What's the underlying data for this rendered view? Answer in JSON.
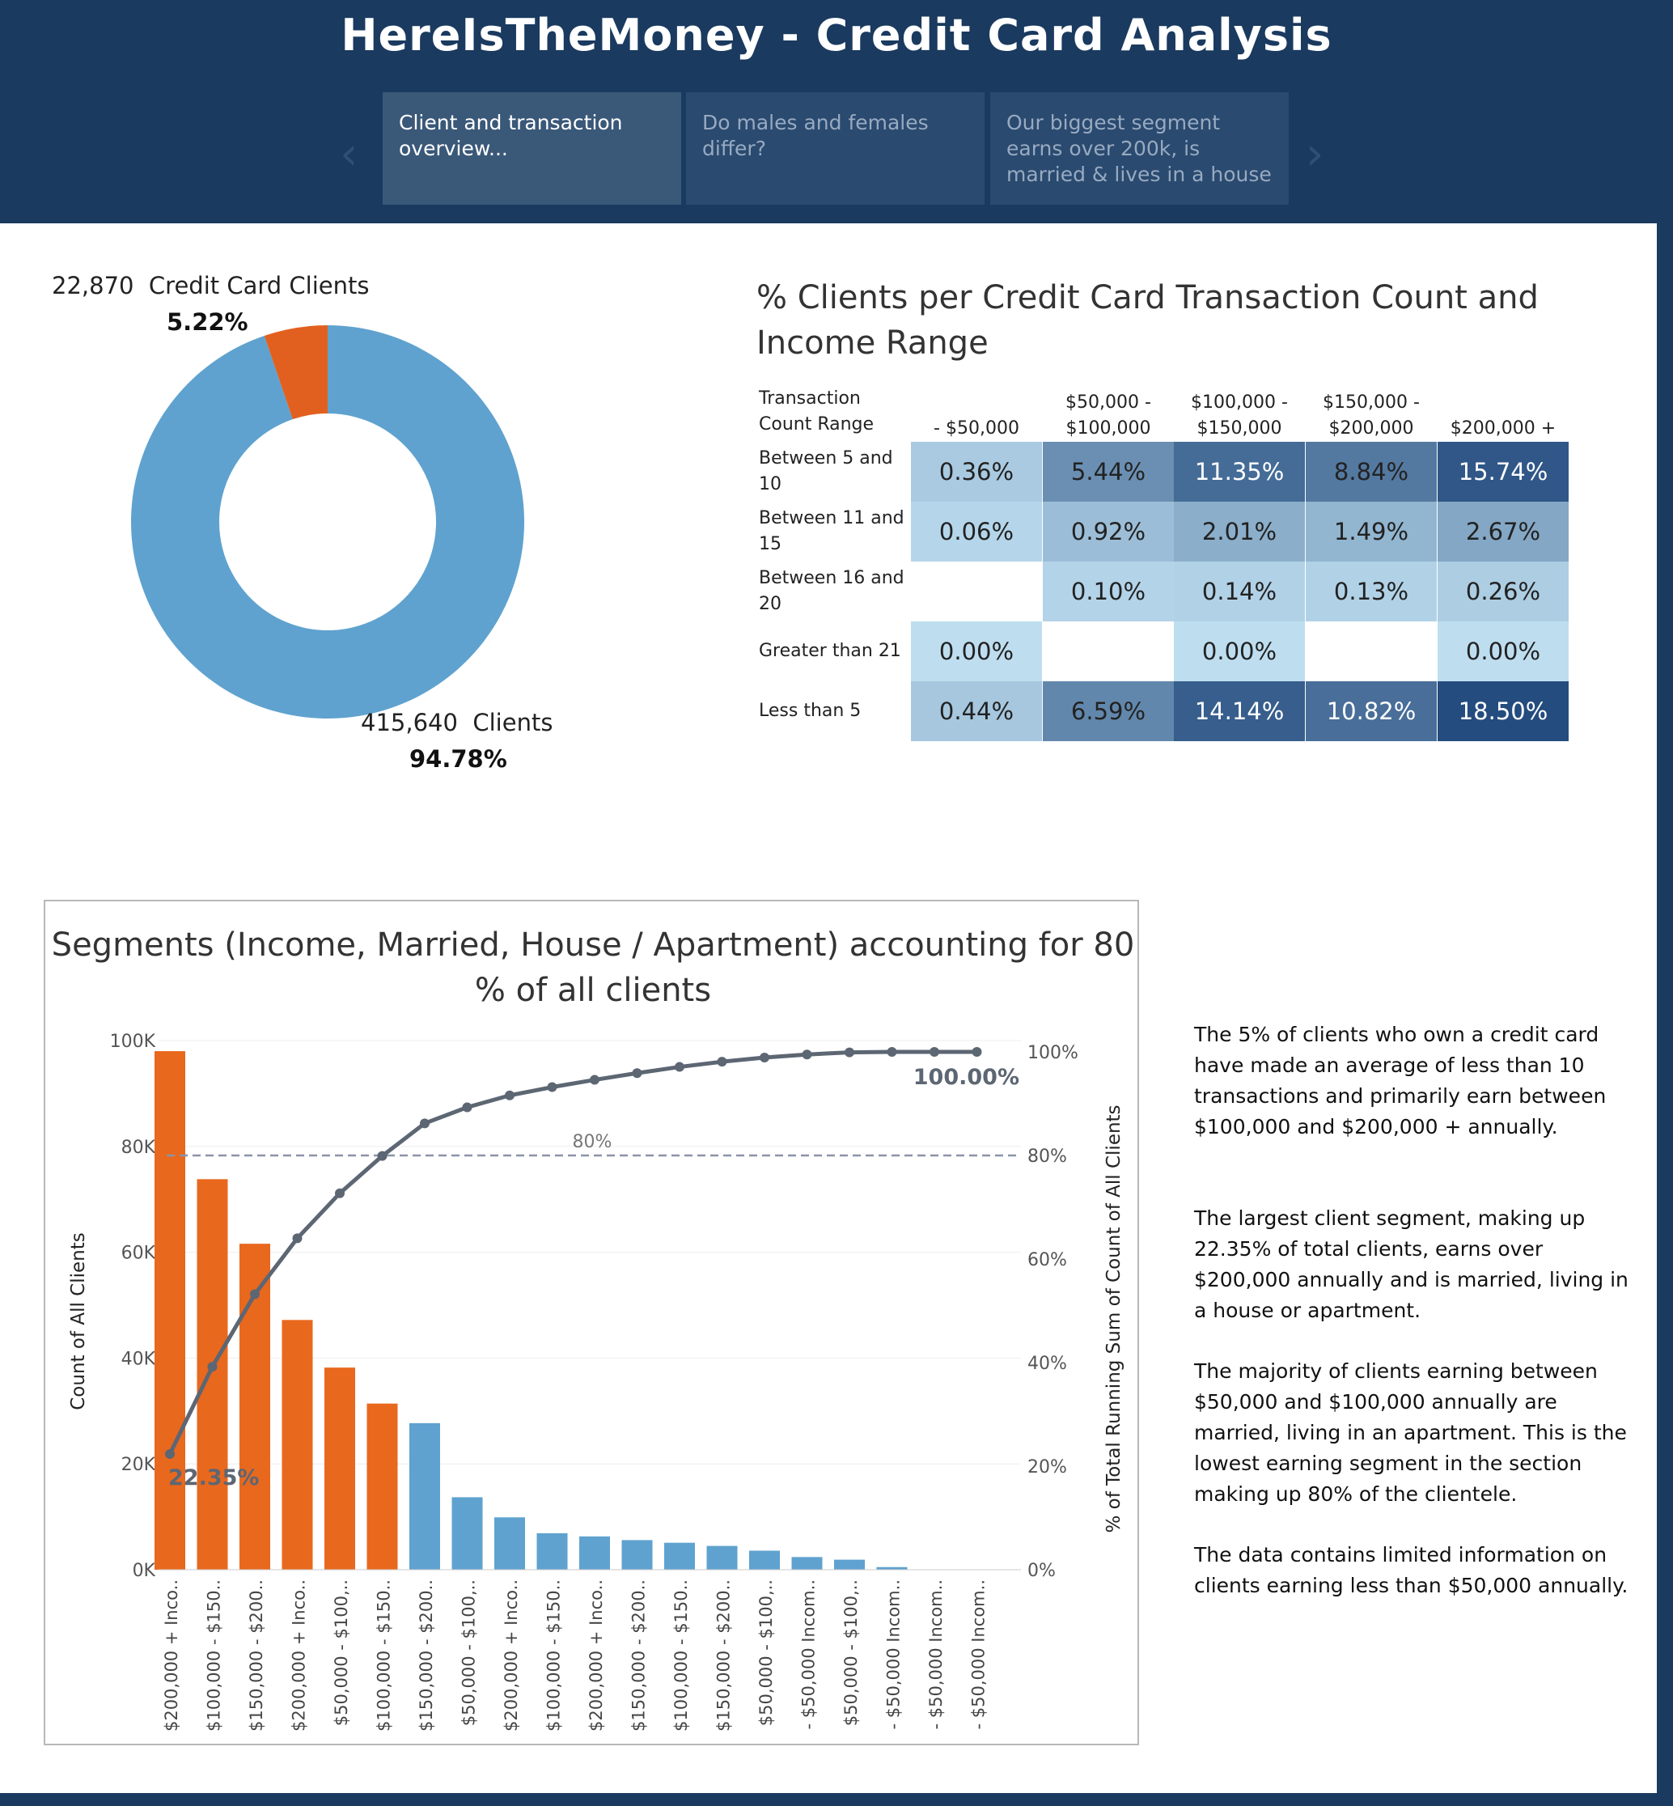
{
  "header": {
    "title": "HereIsTheMoney - Credit Card Analysis",
    "prev_arrow": "‹",
    "next_arrow": "›",
    "tabs": [
      {
        "label": "Client and transaction overview..."
      },
      {
        "label": "Do males and females differ?"
      },
      {
        "label": "Our biggest segment earns over 200k, is married & lives in a house"
      }
    ]
  },
  "donut": {
    "cc_count": "22,870",
    "cc_label": "Credit Card Clients",
    "cc_pct": "5.22%",
    "other_count": "415,640",
    "other_label": "Clients",
    "other_pct": "94.78%",
    "colors": {
      "credit_card": "#e2601f",
      "clients": "#5fa2cf"
    }
  },
  "heatmap": {
    "title": "% Clients per Credit Card Transaction Count and Income Range",
    "row_header": "Transaction Count Range",
    "columns": [
      "- $50,000",
      "$50,000 - $100,000",
      "$100,000 - $150,000",
      "$150,000 - $200,000",
      "$200,000 +"
    ],
    "rows": [
      {
        "label": "Between 5 and 10",
        "values": [
          "0.36%",
          "5.44%",
          "11.35%",
          "8.84%",
          "15.74%"
        ]
      },
      {
        "label": "Between 11 and 15",
        "values": [
          "0.06%",
          "0.92%",
          "2.01%",
          "1.49%",
          "2.67%"
        ]
      },
      {
        "label": "Between 16 and 20",
        "values": [
          "",
          "0.10%",
          "0.14%",
          "0.13%",
          "0.26%"
        ]
      },
      {
        "label": "Greater than 21",
        "values": [
          "0.00%",
          "",
          "0.00%",
          "",
          "0.00%"
        ]
      },
      {
        "label": "Less than 5",
        "values": [
          "0.44%",
          "6.59%",
          "14.14%",
          "10.82%",
          "18.50%"
        ]
      }
    ]
  },
  "chart_data": {
    "type": "bar",
    "title": "Segments (Income, Married, House / Apartment) accounting for 80 % of all clients",
    "ylabel": "Count of All Clients",
    "y2label": "% of Total Running Sum of Count of All Clients",
    "ylim": [
      0,
      100000
    ],
    "y2lim": [
      0,
      100
    ],
    "y_ticks": [
      "0K",
      "20K",
      "40K",
      "60K",
      "80K",
      "100K"
    ],
    "y2_ticks": [
      "0%",
      "20%",
      "40%",
      "60%",
      "80%",
      "100%"
    ],
    "reference_line": {
      "value": 80,
      "label": "80%"
    },
    "first_label": "22.35%",
    "last_label": "100.00%",
    "categories": [
      "$200,000 + Inco..",
      "$100,000 - $150..",
      "$150,000 - $200..",
      "$200,000 + Inco..",
      "$50,000 - $100,..",
      "$100,000 - $150..",
      "$150,000 - $200..",
      "$50,000 - $100,..",
      "$200,000 + Inco..",
      "$100,000 - $150..",
      "$200,000 + Inco..",
      "$150,000 - $200..",
      "$100,000 - $150..",
      "$150,000 - $200..",
      "$50,000 - $100,..",
      "- $50,000 Incom..",
      "$50,000 - $100,..",
      "- $50,000 Incom..",
      "- $50,000 Incom..",
      "- $50,000 Incom.."
    ],
    "values": [
      98000,
      73800,
      61600,
      47200,
      38200,
      31400,
      27700,
      13700,
      9900,
      6900,
      6300,
      5600,
      5100,
      4500,
      3600,
      2400,
      1900,
      500,
      0,
      0
    ],
    "cumulative_pct": [
      22.35,
      39.2,
      53.2,
      64.0,
      72.7,
      79.9,
      86.2,
      89.3,
      91.6,
      93.2,
      94.6,
      95.9,
      97.1,
      98.1,
      98.9,
      99.5,
      99.9,
      100.0,
      100.0,
      100.0
    ],
    "highlighted_count": 6,
    "colors": {
      "highlight": "#e8681e",
      "other": "#5fa2cf",
      "line": "#5d6673",
      "ref": "#8a93a8"
    }
  },
  "insights": [
    "The 5% of clients who own a credit card have made an average of less than 10 transactions and primarily earn between $100,000 and $200,000 + annually.",
    "The largest client segment, making up 22.35% of total clients, earns over $200,000 annually and is married, living in a house or apartment.",
    "The majority of clients earning between $50,000 and $100,000 annually are married, living in an apartment. This is the lowest earning segment in the section making up 80% of the clientele.",
    "The data contains limited information on clients earning less than $50,000 annually."
  ]
}
